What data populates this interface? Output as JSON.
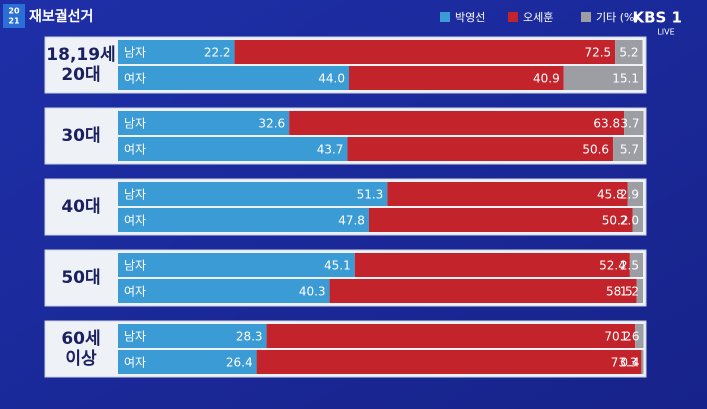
{
  "header": {
    "badge_top": "20",
    "badge_bottom": "21",
    "title": "재보궐선거"
  },
  "logo": {
    "name": "KBS 1",
    "status": "LIVE"
  },
  "chart_data": {
    "type": "stacked-bar",
    "orientation": "horizontal",
    "groups": [
      [
        "18,19세",
        "20대"
      ],
      [
        "30대"
      ],
      [
        "40대"
      ],
      [
        "50대"
      ],
      [
        "60세",
        "이상"
      ]
    ],
    "categories": [
      "남자",
      "여자",
      "남자",
      "여자",
      "남자",
      "여자",
      "남자",
      "여자",
      "남자",
      "여자"
    ],
    "xlim": [
      0,
      100
    ],
    "series": [
      {
        "name": "박영선",
        "color": "#3b9bd4",
        "values": [
          22.2,
          44.0,
          32.6,
          43.7,
          51.3,
          47.8,
          45.1,
          40.3,
          28.3,
          26.4
        ],
        "value_labels": [
          "22.2",
          "44.0",
          "32.6",
          "43.7",
          "51.3",
          "47.8",
          "45.1",
          "40.3",
          "28.3",
          "26.4"
        ]
      },
      {
        "name": "오세훈",
        "color": "#c3242c",
        "values": [
          72.5,
          40.9,
          63.8,
          50.6,
          45.8,
          50.2,
          52.4,
          58.5,
          70.2,
          73.3
        ],
        "value_labels": [
          "72.5",
          "40.9",
          "63.8",
          "50.6",
          "45.8",
          "50.2",
          "52.4",
          "58.5",
          "70.2",
          "73.3"
        ]
      },
      {
        "name": "기타 (%)",
        "color": "#9c9ea3",
        "values": [
          5.2,
          15.1,
          3.7,
          5.7,
          2.9,
          2.0,
          2.5,
          1.2,
          1.6,
          0.4
        ],
        "value_labels": [
          "5.2",
          "15.1",
          "3.7",
          "5.7",
          "2.9",
          "2.0",
          "2.5",
          "1.2",
          "1.6",
          "0.4"
        ]
      }
    ]
  }
}
